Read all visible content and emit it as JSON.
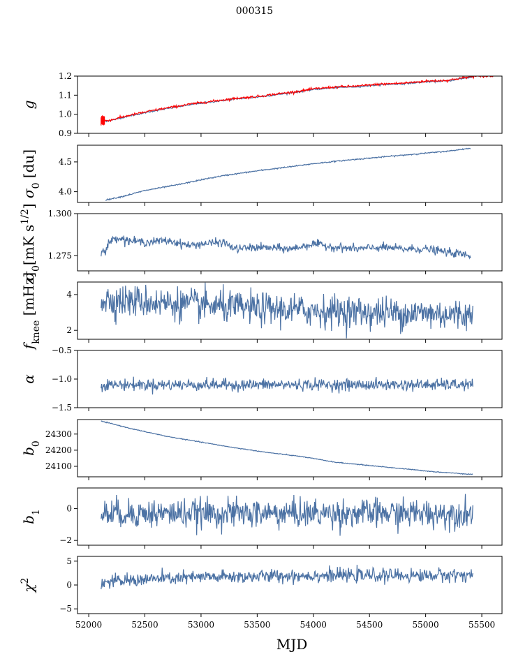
{
  "figure": {
    "title": "000315",
    "xlabel": "MJD"
  },
  "colors": {
    "series": "#4c72a4",
    "overlay": "#ff0000",
    "axes": "#000000"
  },
  "chart_data": [
    {
      "type": "line",
      "ylabel": "g",
      "ylim": [
        0.9,
        1.2
      ],
      "yticks": [
        0.9,
        1.0,
        1.1,
        1.2
      ],
      "ytick_labels": [
        "0.9",
        "1.0",
        "1.1",
        "1.2"
      ],
      "xlim": [
        51900,
        55680
      ],
      "xticks": [
        52000,
        52500,
        53000,
        53500,
        54000,
        54500,
        55000,
        55500
      ],
      "show_xticklabels": false,
      "series": [
        {
          "kind": "trend",
          "x": [
            52110,
            52200,
            52350,
            52600,
            52900,
            53100,
            53300,
            53500,
            53700,
            53900,
            54000,
            54200,
            54400,
            54600,
            54800,
            55000,
            55200,
            55300,
            55420
          ],
          "y": [
            0.962,
            0.968,
            0.99,
            1.02,
            1.05,
            1.065,
            1.08,
            1.09,
            1.105,
            1.12,
            1.13,
            1.14,
            1.145,
            1.155,
            1.16,
            1.17,
            1.175,
            1.185,
            1.195
          ],
          "noise": 0.002,
          "color": "#4c72a4"
        },
        {
          "kind": "trend",
          "x": [
            52110,
            52200,
            52350,
            52600,
            52900,
            53100,
            53300,
            53500,
            53700,
            53900,
            54000,
            54200,
            54400,
            54600,
            54800,
            55000,
            55200,
            55300,
            55420,
            55600
          ],
          "y": [
            0.965,
            0.97,
            0.993,
            1.023,
            1.053,
            1.068,
            1.083,
            1.093,
            1.108,
            1.123,
            1.133,
            1.143,
            1.148,
            1.158,
            1.163,
            1.173,
            1.178,
            1.188,
            1.198,
            1.2
          ],
          "noise": 0.003,
          "color": "#ff0000",
          "errorbar_start": [
            52110,
            52140
          ],
          "errorbar_halfwidth": 0.03
        }
      ]
    },
    {
      "type": "line",
      "ylabel": "σ0 [du]",
      "ylim": [
        3.82,
        4.78
      ],
      "yticks": [
        4.0,
        4.5
      ],
      "ytick_labels": [
        "4.0",
        "4.5"
      ],
      "xlim": [
        51900,
        55680
      ],
      "xticks": [
        52000,
        52500,
        53000,
        53500,
        54000,
        54500,
        55000,
        55500
      ],
      "show_xticklabels": false,
      "series": [
        {
          "kind": "trend",
          "x": [
            52150,
            52300,
            52500,
            52800,
            53000,
            53200,
            53500,
            53800,
            54000,
            54300,
            54600,
            54900,
            55200,
            55400
          ],
          "y": [
            3.86,
            3.92,
            4.02,
            4.12,
            4.2,
            4.27,
            4.35,
            4.42,
            4.47,
            4.53,
            4.58,
            4.63,
            4.68,
            4.73
          ],
          "noise": 0.005,
          "color": "#4c72a4"
        }
      ]
    },
    {
      "type": "line",
      "ylabel": "σ0[mK s^1/2]",
      "ylim": [
        1.266,
        1.3
      ],
      "yticks": [
        1.275,
        1.3
      ],
      "ytick_labels": [
        "1.275",
        "1.300"
      ],
      "xlim": [
        51900,
        55680
      ],
      "xticks": [
        52000,
        52500,
        53000,
        53500,
        54000,
        54500,
        55000,
        55500
      ],
      "show_xticklabels": false,
      "series": [
        {
          "kind": "trend",
          "x": [
            52110,
            52150,
            52180,
            52250,
            52350,
            52500,
            52700,
            52900,
            53000,
            53200,
            53300,
            53500,
            53800,
            54000,
            54200,
            54400,
            54600,
            54800,
            55000,
            55200,
            55400
          ],
          "y": [
            1.278,
            1.277,
            1.283,
            1.286,
            1.284,
            1.283,
            1.284,
            1.281,
            1.282,
            1.283,
            1.279,
            1.28,
            1.279,
            1.282,
            1.28,
            1.279,
            1.28,
            1.279,
            1.279,
            1.277,
            1.275
          ],
          "noise": 0.0012,
          "color": "#4c72a4"
        }
      ]
    },
    {
      "type": "line",
      "ylabel": "f_knee [mHz]",
      "ylim": [
        1.5,
        4.7
      ],
      "yticks": [
        2,
        4
      ],
      "ytick_labels": [
        "2",
        "4"
      ],
      "xlim": [
        51900,
        55680
      ],
      "xticks": [
        52000,
        52500,
        53000,
        53500,
        54000,
        54500,
        55000,
        55500
      ],
      "show_xticklabels": false,
      "series": [
        {
          "kind": "trend",
          "x": [
            52110,
            52500,
            53000,
            53500,
            54000,
            54500,
            55000,
            55420
          ],
          "y": [
            3.7,
            3.6,
            3.4,
            3.2,
            3.1,
            3.0,
            2.95,
            2.85
          ],
          "noise": 0.45,
          "color": "#4c72a4"
        }
      ]
    },
    {
      "type": "line",
      "ylabel": "α",
      "ylim": [
        -1.5,
        -0.5
      ],
      "yticks": [
        -1.5,
        -1.0,
        -0.5
      ],
      "ytick_labels": [
        "−1.5",
        "−1.0",
        "−0.5"
      ],
      "xlim": [
        51900,
        55680
      ],
      "xticks": [
        52000,
        52500,
        53000,
        53500,
        54000,
        54500,
        55000,
        55500
      ],
      "show_xticklabels": false,
      "series": [
        {
          "kind": "trend",
          "x": [
            52110,
            52500,
            53000,
            53500,
            54000,
            54500,
            55000,
            55420
          ],
          "y": [
            -1.1,
            -1.1,
            -1.1,
            -1.1,
            -1.1,
            -1.1,
            -1.1,
            -1.1
          ],
          "noise": 0.05,
          "color": "#4c72a4"
        }
      ]
    },
    {
      "type": "line",
      "ylabel": "b0",
      "ylim": [
        24035,
        24390
      ],
      "yticks": [
        24100,
        24200,
        24300
      ],
      "ytick_labels": [
        "24100",
        "24200",
        "24300"
      ],
      "xlim": [
        51900,
        55680
      ],
      "xticks": [
        52000,
        52500,
        53000,
        53500,
        54000,
        54500,
        55000,
        55500
      ],
      "show_xticklabels": false,
      "series": [
        {
          "kind": "trend",
          "x": [
            52110,
            52200,
            52400,
            52700,
            53000,
            53300,
            53600,
            53900,
            54200,
            54500,
            54800,
            55100,
            55420
          ],
          "y": [
            24380,
            24365,
            24330,
            24285,
            24250,
            24215,
            24185,
            24160,
            24125,
            24105,
            24085,
            24065,
            24050
          ],
          "noise": 1.2,
          "color": "#4c72a4"
        }
      ]
    },
    {
      "type": "line",
      "ylabel": "b1",
      "ylim": [
        -2.3,
        1.3
      ],
      "yticks": [
        -2,
        0
      ],
      "ytick_labels": [
        "−2",
        "0"
      ],
      "xlim": [
        51900,
        55680
      ],
      "xticks": [
        52000,
        52500,
        53000,
        53500,
        54000,
        54500,
        55000,
        55500
      ],
      "show_xticklabels": false,
      "series": [
        {
          "kind": "trend",
          "x": [
            52110,
            52500,
            53000,
            53500,
            54000,
            54500,
            55000,
            55420
          ],
          "y": [
            -0.3,
            -0.3,
            -0.3,
            -0.3,
            -0.3,
            -0.3,
            -0.3,
            -0.3
          ],
          "noise": 0.45,
          "color": "#4c72a4"
        }
      ]
    },
    {
      "type": "line",
      "ylabel": "χ2",
      "ylim": [
        -6,
        6
      ],
      "yticks": [
        -5,
        0,
        5
      ],
      "ytick_labels": [
        "−5",
        "0",
        "5"
      ],
      "xlim": [
        51900,
        55680
      ],
      "xticks": [
        52000,
        52500,
        53000,
        53500,
        54000,
        54500,
        55000,
        55500
      ],
      "xtick_labels": [
        "52000",
        "52500",
        "53000",
        "53500",
        "54000",
        "54500",
        "55000",
        "55500"
      ],
      "show_xticklabels": true,
      "series": [
        {
          "kind": "trend",
          "x": [
            52110,
            52500,
            53000,
            53500,
            54000,
            54500,
            55000,
            55420
          ],
          "y": [
            0.5,
            1.2,
            1.6,
            1.8,
            2.0,
            2.0,
            2.0,
            2.2
          ],
          "noise": 0.7,
          "color": "#4c72a4"
        }
      ]
    }
  ]
}
